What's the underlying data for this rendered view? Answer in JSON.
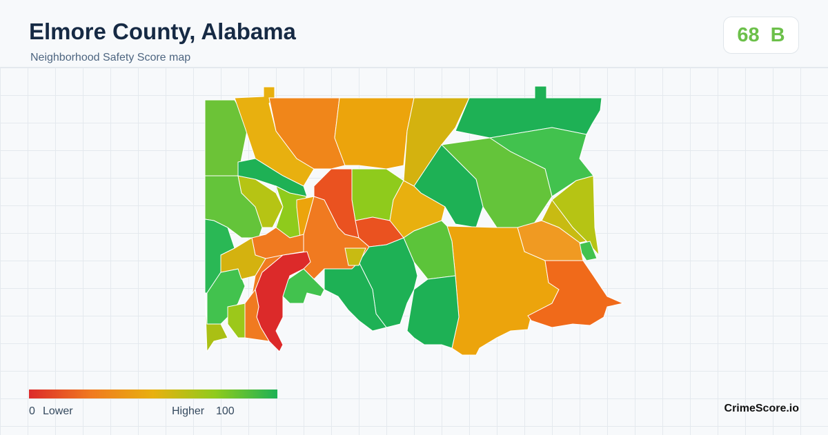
{
  "header": {
    "title": "Elmore County, Alabama",
    "subtitle": "Neighborhood Safety Score map"
  },
  "score": {
    "value": 68,
    "grade": "B"
  },
  "legend": {
    "min": 0,
    "min_label": "Lower",
    "max_label": "Higher",
    "max": 100
  },
  "brand": "CrimeScore.io"
}
